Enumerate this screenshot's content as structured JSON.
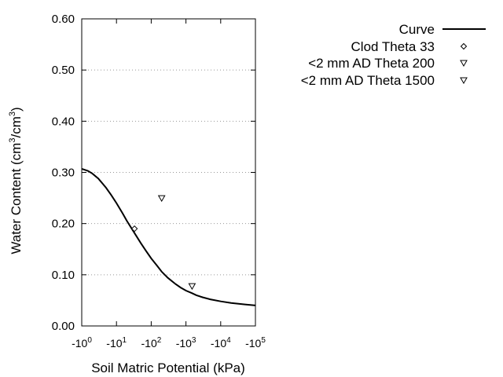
{
  "chart_data": {
    "type": "scatter",
    "xlabel": "Soil Matric Potential (kPa)",
    "ylabel": {
      "prefix": "Water Content (cm",
      "sup1": "3",
      "middle": "/cm",
      "sup2": "3",
      "suffix": ")"
    },
    "x_scale": "log",
    "x_ticks": [
      {
        "base": "-10",
        "exp": "0",
        "value": -1
      },
      {
        "base": "-10",
        "exp": "1",
        "value": -10
      },
      {
        "base": "-10",
        "exp": "2",
        "value": -100
      },
      {
        "base": "-10",
        "exp": "3",
        "value": -1000
      },
      {
        "base": "-10",
        "exp": "4",
        "value": -10000
      },
      {
        "base": "-10",
        "exp": "5",
        "value": -100000
      }
    ],
    "y_ticks": [
      "0.00",
      "0.10",
      "0.20",
      "0.30",
      "0.40",
      "0.50",
      "0.60"
    ],
    "ylim": [
      0,
      0.6
    ],
    "grid": "horizontal dotted",
    "legend_position": "top-right",
    "series": [
      {
        "name": "Curve",
        "kind": "line",
        "color": "#000000",
        "points": [
          {
            "x": -1,
            "y": 0.307
          },
          {
            "x": -1.5,
            "y": 0.303
          },
          {
            "x": -2,
            "y": 0.298
          },
          {
            "x": -3,
            "y": 0.288
          },
          {
            "x": -5,
            "y": 0.27
          },
          {
            "x": -7,
            "y": 0.256
          },
          {
            "x": -10,
            "y": 0.24
          },
          {
            "x": -15,
            "y": 0.22
          },
          {
            "x": -20,
            "y": 0.205
          },
          {
            "x": -30,
            "y": 0.186
          },
          {
            "x": -50,
            "y": 0.162
          },
          {
            "x": -70,
            "y": 0.147
          },
          {
            "x": -100,
            "y": 0.132
          },
          {
            "x": -150,
            "y": 0.117
          },
          {
            "x": -200,
            "y": 0.106
          },
          {
            "x": -300,
            "y": 0.094
          },
          {
            "x": -500,
            "y": 0.082
          },
          {
            "x": -700,
            "y": 0.075
          },
          {
            "x": -1000,
            "y": 0.069
          },
          {
            "x": -1500,
            "y": 0.064
          },
          {
            "x": -2000,
            "y": 0.06
          },
          {
            "x": -3000,
            "y": 0.056
          },
          {
            "x": -5000,
            "y": 0.052
          },
          {
            "x": -10000,
            "y": 0.048
          },
          {
            "x": -20000,
            "y": 0.045
          },
          {
            "x": -50000,
            "y": 0.042
          },
          {
            "x": -100000,
            "y": 0.04
          }
        ]
      },
      {
        "name": "Clod Theta 33",
        "kind": "scatter",
        "marker": "diamond",
        "points": [
          {
            "x": -33,
            "y": 0.19
          }
        ]
      },
      {
        "name": "<2 mm AD Theta 200",
        "kind": "scatter",
        "marker": "triangle-down",
        "points": [
          {
            "x": -200,
            "y": 0.25
          }
        ]
      },
      {
        "name": "<2 mm AD Theta 1500",
        "kind": "scatter",
        "marker": "triangle-down",
        "points": [
          {
            "x": -1500,
            "y": 0.078
          }
        ]
      }
    ]
  }
}
